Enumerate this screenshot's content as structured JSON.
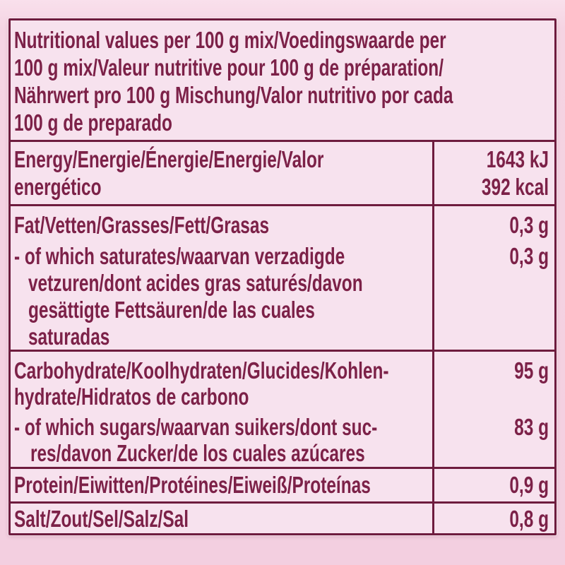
{
  "colors": {
    "outer_background": "#f5d4e3",
    "panel_background": "#f7e2ee",
    "ink_border": "#6e1c3e",
    "text": "#7c2148"
  },
  "table": {
    "header_lines": [
      "Nutritional values per 100 g mix/Voedingswaarde per",
      "100 g mix/Valeur nutritive pour 100 g de préparation/",
      "Nährwert pro 100 g Mischung/Valor nutritivo por cada",
      "100 g de preparado"
    ],
    "rows": [
      {
        "name": "energy",
        "label_lines": [
          "Energy/Energie/Énergie/Energie/Valor",
          "energético"
        ],
        "value_lines": [
          "1643 kJ",
          "392 kcal"
        ]
      },
      {
        "name": "fat",
        "label_lines": [
          "Fat/Vetten/Grasses/Fett/Grasas",
          "- of which saturates/waarvan verzadigde",
          "vetzuren/dont acides gras saturés/davon",
          "gesättigte Fettsäuren/de las cuales",
          "saturadas"
        ],
        "value_lines": [
          "0,3 g",
          "0,3 g",
          "",
          "",
          ""
        ]
      },
      {
        "name": "carbohydrate",
        "label_lines": [
          "Carbohydrate/Koolhydraten/Glucides/Kohlen-",
          "hydrate/Hidratos de carbono",
          "- of which sugars/waarvan suikers/dont suc-",
          "res/davon Zucker/de los cuales azúcares"
        ],
        "value_lines": [
          "95 g",
          "",
          "83 g",
          ""
        ]
      },
      {
        "name": "protein",
        "label_lines": [
          "Protein/Eiwitten/Protéines/Eiweiß/Proteínas"
        ],
        "value_lines": [
          "0,9 g"
        ]
      },
      {
        "name": "salt",
        "label_lines": [
          "Salt/Zout/Sel/Salz/Sal"
        ],
        "value_lines": [
          "0,8 g"
        ]
      }
    ]
  }
}
